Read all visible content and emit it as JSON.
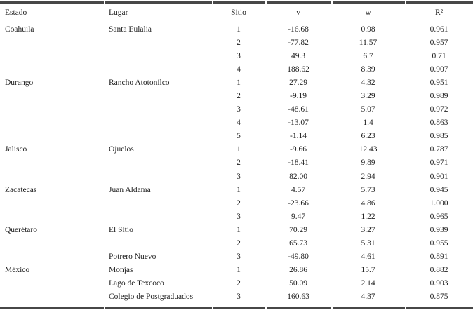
{
  "table": {
    "columns": [
      {
        "key": "estado",
        "label": "Estado",
        "align": "left"
      },
      {
        "key": "lugar",
        "label": "Lugar",
        "align": "left"
      },
      {
        "key": "sitio",
        "label": "Sitio",
        "align": "center"
      },
      {
        "key": "v",
        "label": "v",
        "align": "center"
      },
      {
        "key": "w",
        "label": "w",
        "align": "center"
      },
      {
        "key": "r2",
        "label": "R²",
        "align": "center"
      }
    ],
    "rows": [
      {
        "estado": "Coahuila",
        "lugar": "Santa Eulalia",
        "sitio": "1",
        "v": "-16.68",
        "w": "0.98",
        "r2": "0.961"
      },
      {
        "estado": "",
        "lugar": "",
        "sitio": "2",
        "v": "-77.82",
        "w": "11.57",
        "r2": "0.957"
      },
      {
        "estado": "",
        "lugar": "",
        "sitio": "3",
        "v": "49.3",
        "w": "6.7",
        "r2": "0.71"
      },
      {
        "estado": "",
        "lugar": "",
        "sitio": "4",
        "v": "188.62",
        "w": "8.39",
        "r2": "0.907"
      },
      {
        "estado": "Durango",
        "lugar": "Rancho Atotonilco",
        "sitio": "1",
        "v": "27.29",
        "w": "4.32",
        "r2": "0.951"
      },
      {
        "estado": "",
        "lugar": "",
        "sitio": "2",
        "v": "-9.19",
        "w": "3.29",
        "r2": "0.989"
      },
      {
        "estado": "",
        "lugar": "",
        "sitio": "3",
        "v": "-48.61",
        "w": "5.07",
        "r2": "0.972"
      },
      {
        "estado": "",
        "lugar": "",
        "sitio": "4",
        "v": "-13.07",
        "w": "1.4",
        "r2": "0.863"
      },
      {
        "estado": "",
        "lugar": "",
        "sitio": "5",
        "v": "-1.14",
        "w": "6.23",
        "r2": "0.985"
      },
      {
        "estado": "Jalisco",
        "lugar": "Ojuelos",
        "sitio": "1",
        "v": "-9.66",
        "w": "12.43",
        "r2": "0.787"
      },
      {
        "estado": "",
        "lugar": "",
        "sitio": "2",
        "v": "-18.41",
        "w": "9.89",
        "r2": "0.971"
      },
      {
        "estado": "",
        "lugar": "",
        "sitio": "3",
        "v": "82.00",
        "w": "2.94",
        "r2": "0.901"
      },
      {
        "estado": "Zacatecas",
        "lugar": "Juan Aldama",
        "sitio": "1",
        "v": "4.57",
        "w": "5.73",
        "r2": "0.945"
      },
      {
        "estado": "",
        "lugar": "",
        "sitio": "2",
        "v": "-23.66",
        "w": "4.86",
        "r2": "1.000"
      },
      {
        "estado": "",
        "lugar": "",
        "sitio": "3",
        "v": "9.47",
        "w": "1.22",
        "r2": "0.965"
      },
      {
        "estado": "Querétaro",
        "lugar": "El Sitio",
        "sitio": "1",
        "v": "70.29",
        "w": "3.27",
        "r2": "0.939"
      },
      {
        "estado": "",
        "lugar": "",
        "sitio": "2",
        "v": "65.73",
        "w": "5.31",
        "r2": "0.955"
      },
      {
        "estado": "",
        "lugar": "Potrero Nuevo",
        "sitio": "3",
        "v": "-49.80",
        "w": "4.61",
        "r2": "0.891"
      },
      {
        "estado": "México",
        "lugar": "Monjas",
        "sitio": "1",
        "v": "26.86",
        "w": "15.7",
        "r2": "0.882"
      },
      {
        "estado": "",
        "lugar": "Lago de Texcoco",
        "sitio": "2",
        "v": "50.09",
        "w": "2.14",
        "r2": "0.903"
      },
      {
        "estado": "",
        "lugar": "Colegio de Postgraduados",
        "sitio": "3",
        "v": "160.63",
        "w": "4.37",
        "r2": "0.875"
      }
    ]
  },
  "colors": {
    "rule_dark": "#474747",
    "rule_light": "#757575",
    "text": "#1e1e1e",
    "background": "#ffffff"
  }
}
